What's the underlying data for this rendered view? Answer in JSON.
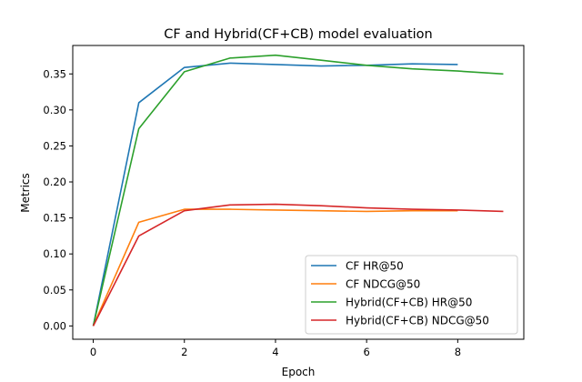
{
  "chart_data": {
    "type": "line",
    "title": "CF and Hybrid(CF+CB) model evaluation",
    "xlabel": "Epoch",
    "ylabel": "Metrics",
    "xlim": [
      -0.45,
      9.45
    ],
    "ylim": [
      -0.0185,
      0.3895
    ],
    "xticks": [
      0,
      2,
      4,
      6,
      8
    ],
    "xtick_labels": [
      "0",
      "2",
      "4",
      "6",
      "8"
    ],
    "yticks": [
      0.0,
      0.05,
      0.1,
      0.15,
      0.2,
      0.25,
      0.3,
      0.35
    ],
    "ytick_labels": [
      "0.00",
      "0.05",
      "0.10",
      "0.15",
      "0.20",
      "0.25",
      "0.30",
      "0.35"
    ],
    "grid": false,
    "legend_position": "lower-right",
    "series": [
      {
        "name": "CF HR@50",
        "color": "#1f77b4",
        "x": [
          0,
          1,
          2,
          3,
          4,
          5,
          6,
          7,
          8
        ],
        "y": [
          0.0,
          0.31,
          0.359,
          0.365,
          0.363,
          0.361,
          0.362,
          0.364,
          0.363
        ]
      },
      {
        "name": "CF NDCG@50",
        "color": "#ff7f0e",
        "x": [
          0,
          1,
          2,
          3,
          4,
          5,
          6,
          7,
          8
        ],
        "y": [
          0.0,
          0.144,
          0.162,
          0.162,
          0.161,
          0.16,
          0.159,
          0.16,
          0.16
        ]
      },
      {
        "name": "Hybrid(CF+CB) HR@50",
        "color": "#2ca02c",
        "x": [
          0,
          1,
          2,
          3,
          4,
          5,
          6,
          7,
          8,
          9
        ],
        "y": [
          0.0,
          0.274,
          0.353,
          0.372,
          0.376,
          0.369,
          0.362,
          0.357,
          0.354,
          0.35
        ]
      },
      {
        "name": "Hybrid(CF+CB) NDCG@50",
        "color": "#d62728",
        "x": [
          0,
          1,
          2,
          3,
          4,
          5,
          6,
          7,
          8,
          9
        ],
        "y": [
          0.0,
          0.125,
          0.16,
          0.168,
          0.169,
          0.167,
          0.164,
          0.162,
          0.161,
          0.159
        ]
      }
    ]
  }
}
